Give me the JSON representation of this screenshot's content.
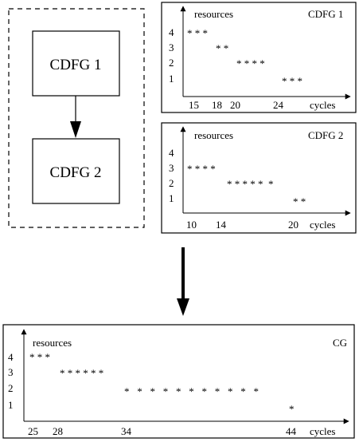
{
  "flow": {
    "nodes": [
      "CDFG 1",
      "CDFG 2"
    ]
  },
  "panels": [
    {
      "title": "CDFG 1",
      "ylabel": "resources",
      "xlabel": "cycles",
      "yticks": [
        "1",
        "2",
        "3",
        "4"
      ],
      "xticks": [
        "15",
        "18",
        "20",
        "24"
      ],
      "rows": [
        {
          "level": "4",
          "stars": "* * *"
        },
        {
          "level": "3",
          "stars": "* *"
        },
        {
          "level": "2",
          "stars": "* * * *"
        },
        {
          "level": "1",
          "stars": "* * *"
        }
      ]
    },
    {
      "title": "CDFG 2",
      "ylabel": "resources",
      "xlabel": "cycles",
      "yticks": [
        "1",
        "2",
        "3",
        "4"
      ],
      "xticks": [
        "10",
        "14",
        "20"
      ],
      "rows": [
        {
          "level": "3",
          "stars": "* * * *"
        },
        {
          "level": "2",
          "stars": "* * * * *  *"
        },
        {
          "level": "1",
          "stars": "* *"
        }
      ]
    },
    {
      "title": "CG",
      "ylabel": "resources",
      "xlabel": "cycles",
      "yticks": [
        "1",
        "2",
        "3",
        "4"
      ],
      "xticks": [
        "25",
        "28",
        "34",
        "44"
      ],
      "rows": [
        {
          "level": "4",
          "stars": "* * *"
        },
        {
          "level": "3",
          "stars": "* * * * * *"
        },
        {
          "level": "2",
          "stars": "*   *   *   *   *   *   *   *   *   *   *"
        },
        {
          "level": "1",
          "stars": "*"
        }
      ]
    }
  ]
}
